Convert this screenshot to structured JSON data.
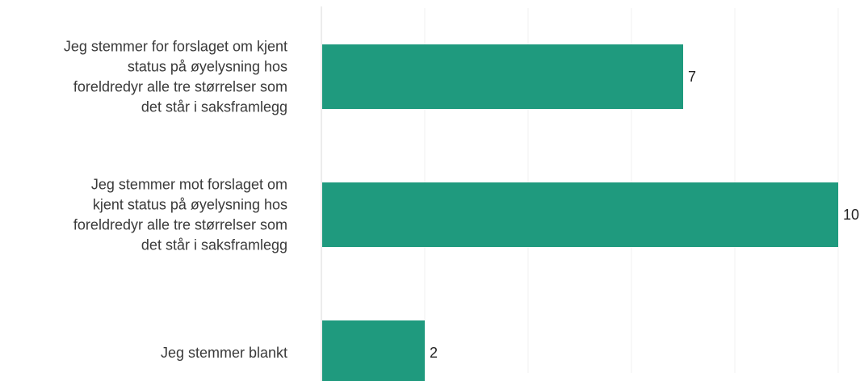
{
  "colors": {
    "bar": "#1f9a7e",
    "axis": "#d9d9d9",
    "grid": "#f2f2f2"
  },
  "chart_data": {
    "type": "bar",
    "orientation": "horizontal",
    "categories": [
      [
        "Jeg stemmer for forslaget om kjent",
        "status på øyelysning hos",
        "foreldredyr alle tre størrelser som",
        "det står i saksframlegg"
      ],
      [
        "Jeg stemmer mot forslaget om",
        "kjent status på øyelysning hos",
        "foreldredyr alle tre størrelser som",
        "det står i saksframlegg"
      ],
      [
        "Jeg stemmer blankt"
      ]
    ],
    "values": [
      7,
      10,
      2
    ],
    "data_labels": [
      "7",
      "10",
      "2"
    ],
    "xlim": [
      0,
      10
    ],
    "grid": true,
    "title": "",
    "xlabel": "",
    "ylabel": ""
  }
}
